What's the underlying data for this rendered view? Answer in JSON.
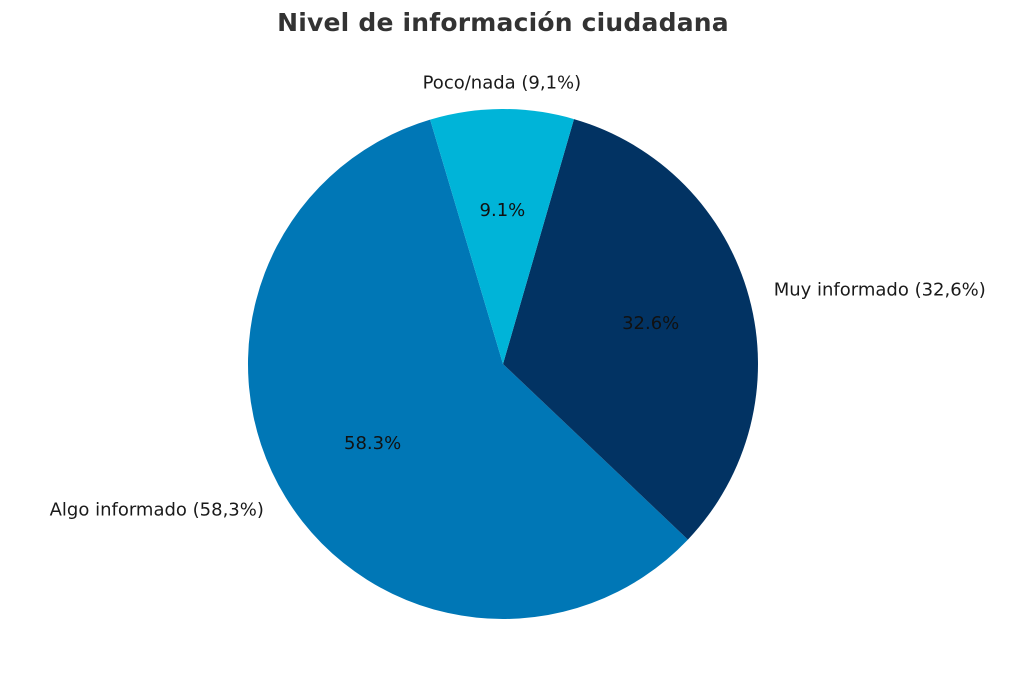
{
  "chart_data": {
    "type": "pie",
    "title": "Nivel de información ciudadana",
    "slices": [
      {
        "name": "Algo informado",
        "label": "Algo informado (58,3%)",
        "value": 58.3,
        "pct_text": "58.3%",
        "color": "#0077B6"
      },
      {
        "name": "Muy informado",
        "label": "Muy informado (32,6%)",
        "value": 32.6,
        "pct_text": "32.6%",
        "color": "#023363"
      },
      {
        "name": "Poco/nada",
        "label": "Poco/nada (9,1%)",
        "value": 9.1,
        "pct_text": "9.1%",
        "color": "#00B4D8"
      }
    ],
    "direction": "counterclockwise",
    "legend": "none"
  }
}
